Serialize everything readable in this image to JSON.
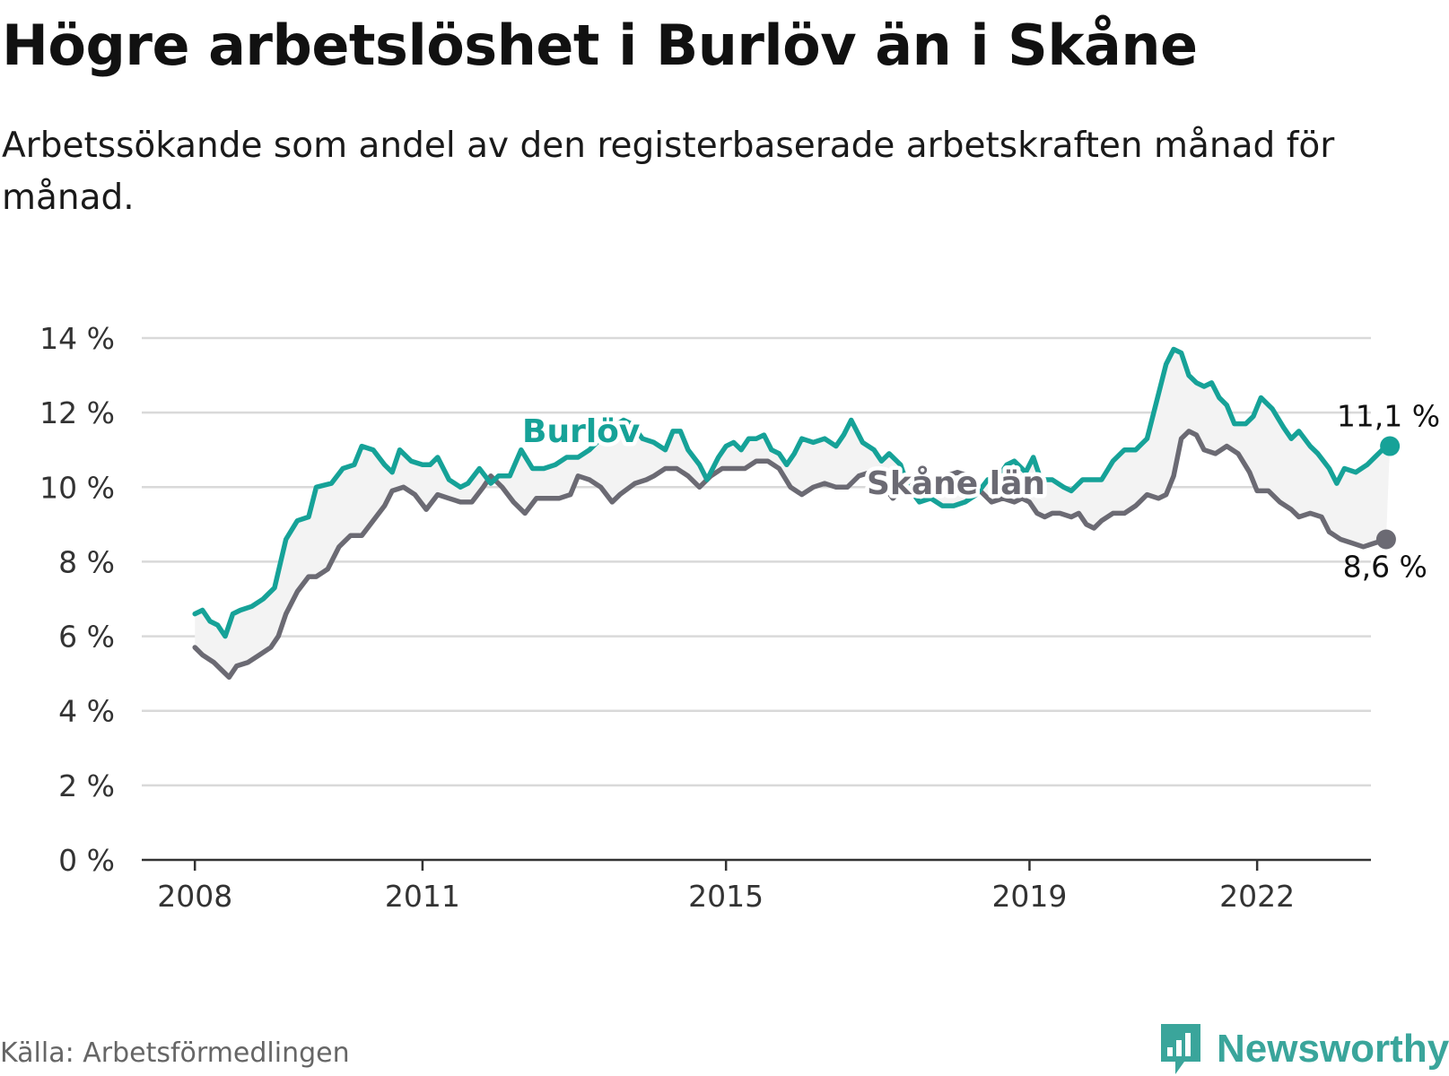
{
  "header": {
    "title": "Högre arbetslöshet i Burlöv än i Skåne",
    "subtitle": "Arbetssökande som andel av den registerbaserade arbetskraften månad för månad."
  },
  "footer": {
    "source": "Källa: Arbetsförmedlingen",
    "brand": "Newsworthy",
    "brand_icon": "newsworthy-logo-icon"
  },
  "colors": {
    "burlov": "#16a298",
    "skane": "#6b6a73",
    "grid": "#d9d9d9",
    "axis": "#333333",
    "band": "#f3f3f3"
  },
  "chart_data": {
    "type": "line",
    "title": "Högre arbetslöshet i Burlöv än i Skåne",
    "xlabel": "",
    "ylabel": "",
    "ylim": [
      0,
      14
    ],
    "xlim": [
      2007.3,
      2023.5
    ],
    "y_ticks": [
      0,
      2,
      4,
      6,
      8,
      10,
      12,
      14
    ],
    "y_tick_labels": [
      "0 %",
      "2 %",
      "4 %",
      "6 %",
      "8 %",
      "10 %",
      "12 %",
      "14 %"
    ],
    "x_ticks": [
      2008,
      2011,
      2015,
      2019,
      2022
    ],
    "x_tick_labels": [
      "2008",
      "2011",
      "2015",
      "2019",
      "2022"
    ],
    "grid": true,
    "series": [
      {
        "name": "Burlöv",
        "label": "Burlöv",
        "end_label": "11,1 %",
        "points": [
          [
            2008.0,
            6.6
          ],
          [
            2008.1,
            6.7
          ],
          [
            2008.2,
            6.4
          ],
          [
            2008.3,
            6.3
          ],
          [
            2008.4,
            6.0
          ],
          [
            2008.5,
            6.6
          ],
          [
            2008.6,
            6.7
          ],
          [
            2008.75,
            6.8
          ],
          [
            2008.9,
            7.0
          ],
          [
            2009.05,
            7.3
          ],
          [
            2009.2,
            8.6
          ],
          [
            2009.35,
            9.1
          ],
          [
            2009.5,
            9.2
          ],
          [
            2009.6,
            10.0
          ],
          [
            2009.8,
            10.1
          ],
          [
            2009.95,
            10.5
          ],
          [
            2010.1,
            10.6
          ],
          [
            2010.2,
            11.1
          ],
          [
            2010.35,
            11.0
          ],
          [
            2010.5,
            10.6
          ],
          [
            2010.6,
            10.4
          ],
          [
            2010.7,
            11.0
          ],
          [
            2010.85,
            10.7
          ],
          [
            2011.0,
            10.6
          ],
          [
            2011.1,
            10.6
          ],
          [
            2011.2,
            10.8
          ],
          [
            2011.35,
            10.2
          ],
          [
            2011.5,
            10.0
          ],
          [
            2011.6,
            10.1
          ],
          [
            2011.75,
            10.5
          ],
          [
            2011.9,
            10.1
          ],
          [
            2012.0,
            10.3
          ],
          [
            2012.15,
            10.3
          ],
          [
            2012.3,
            11.0
          ],
          [
            2012.45,
            10.5
          ],
          [
            2012.6,
            10.5
          ],
          [
            2012.75,
            10.6
          ],
          [
            2012.9,
            10.8
          ],
          [
            2013.05,
            10.8
          ],
          [
            2013.2,
            11.0
          ],
          [
            2013.35,
            11.3
          ],
          [
            2013.5,
            11.6
          ],
          [
            2013.65,
            11.8
          ],
          [
            2013.75,
            11.7
          ],
          [
            2013.9,
            11.3
          ],
          [
            2014.05,
            11.2
          ],
          [
            2014.2,
            11.0
          ],
          [
            2014.3,
            11.5
          ],
          [
            2014.4,
            11.5
          ],
          [
            2014.5,
            11.0
          ],
          [
            2014.65,
            10.6
          ],
          [
            2014.75,
            10.2
          ],
          [
            2014.9,
            10.8
          ],
          [
            2015.0,
            11.1
          ],
          [
            2015.1,
            11.2
          ],
          [
            2015.2,
            11.0
          ],
          [
            2015.3,
            11.3
          ],
          [
            2015.4,
            11.3
          ],
          [
            2015.5,
            11.4
          ],
          [
            2015.6,
            11.0
          ],
          [
            2015.7,
            10.9
          ],
          [
            2015.8,
            10.6
          ],
          [
            2015.9,
            10.9
          ],
          [
            2016.0,
            11.3
          ],
          [
            2016.15,
            11.2
          ],
          [
            2016.3,
            11.3
          ],
          [
            2016.45,
            11.1
          ],
          [
            2016.55,
            11.4
          ],
          [
            2016.65,
            11.8
          ],
          [
            2016.8,
            11.2
          ],
          [
            2016.95,
            11.0
          ],
          [
            2017.05,
            10.7
          ],
          [
            2017.15,
            10.9
          ],
          [
            2017.3,
            10.6
          ],
          [
            2017.4,
            10.0
          ],
          [
            2017.55,
            9.6
          ],
          [
            2017.7,
            9.7
          ],
          [
            2017.85,
            9.5
          ],
          [
            2018.0,
            9.5
          ],
          [
            2018.15,
            9.6
          ],
          [
            2018.3,
            9.8
          ],
          [
            2018.45,
            10.2
          ],
          [
            2018.6,
            10.3
          ],
          [
            2018.7,
            10.6
          ],
          [
            2018.8,
            10.7
          ],
          [
            2018.95,
            10.4
          ],
          [
            2019.05,
            10.8
          ],
          [
            2019.15,
            10.2
          ],
          [
            2019.3,
            10.2
          ],
          [
            2019.45,
            10.0
          ],
          [
            2019.55,
            9.9
          ],
          [
            2019.7,
            10.2
          ],
          [
            2019.85,
            10.2
          ],
          [
            2019.95,
            10.2
          ],
          [
            2020.1,
            10.7
          ],
          [
            2020.25,
            11.0
          ],
          [
            2020.4,
            11.0
          ],
          [
            2020.55,
            11.3
          ],
          [
            2020.7,
            12.5
          ],
          [
            2020.8,
            13.3
          ],
          [
            2020.9,
            13.7
          ],
          [
            2021.0,
            13.6
          ],
          [
            2021.1,
            13.0
          ],
          [
            2021.2,
            12.8
          ],
          [
            2021.3,
            12.7
          ],
          [
            2021.4,
            12.8
          ],
          [
            2021.5,
            12.4
          ],
          [
            2021.6,
            12.2
          ],
          [
            2021.7,
            11.7
          ],
          [
            2021.85,
            11.7
          ],
          [
            2021.95,
            11.9
          ],
          [
            2022.05,
            12.4
          ],
          [
            2022.2,
            12.1
          ],
          [
            2022.35,
            11.6
          ],
          [
            2022.45,
            11.3
          ],
          [
            2022.55,
            11.5
          ],
          [
            2022.7,
            11.1
          ],
          [
            2022.8,
            10.9
          ],
          [
            2022.95,
            10.5
          ],
          [
            2023.05,
            10.1
          ],
          [
            2023.15,
            10.5
          ],
          [
            2023.3,
            10.4
          ],
          [
            2023.45,
            10.6
          ],
          [
            2023.55,
            10.8
          ],
          [
            2023.65,
            11.0
          ],
          [
            2023.75,
            11.1
          ]
        ]
      },
      {
        "name": "Skåne län",
        "label": "Skåne län",
        "end_label": "8,6 %",
        "points": [
          [
            2008.0,
            5.7
          ],
          [
            2008.1,
            5.5
          ],
          [
            2008.25,
            5.3
          ],
          [
            2008.35,
            5.1
          ],
          [
            2008.45,
            4.9
          ],
          [
            2008.55,
            5.2
          ],
          [
            2008.7,
            5.3
          ],
          [
            2008.85,
            5.5
          ],
          [
            2009.0,
            5.7
          ],
          [
            2009.1,
            6.0
          ],
          [
            2009.2,
            6.6
          ],
          [
            2009.35,
            7.2
          ],
          [
            2009.5,
            7.6
          ],
          [
            2009.6,
            7.6
          ],
          [
            2009.75,
            7.8
          ],
          [
            2009.9,
            8.4
          ],
          [
            2010.05,
            8.7
          ],
          [
            2010.2,
            8.7
          ],
          [
            2010.35,
            9.1
          ],
          [
            2010.5,
            9.5
          ],
          [
            2010.6,
            9.9
          ],
          [
            2010.75,
            10.0
          ],
          [
            2010.9,
            9.8
          ],
          [
            2011.05,
            9.4
          ],
          [
            2011.2,
            9.8
          ],
          [
            2011.35,
            9.7
          ],
          [
            2011.5,
            9.6
          ],
          [
            2011.65,
            9.6
          ],
          [
            2011.8,
            10.0
          ],
          [
            2011.9,
            10.3
          ],
          [
            2012.05,
            10.0
          ],
          [
            2012.2,
            9.6
          ],
          [
            2012.35,
            9.3
          ],
          [
            2012.5,
            9.7
          ],
          [
            2012.65,
            9.7
          ],
          [
            2012.8,
            9.7
          ],
          [
            2012.95,
            9.8
          ],
          [
            2013.05,
            10.3
          ],
          [
            2013.2,
            10.2
          ],
          [
            2013.35,
            10.0
          ],
          [
            2013.5,
            9.6
          ],
          [
            2013.6,
            9.8
          ],
          [
            2013.8,
            10.1
          ],
          [
            2013.95,
            10.2
          ],
          [
            2014.05,
            10.3
          ],
          [
            2014.2,
            10.5
          ],
          [
            2014.35,
            10.5
          ],
          [
            2014.5,
            10.3
          ],
          [
            2014.65,
            10.0
          ],
          [
            2014.8,
            10.3
          ],
          [
            2014.95,
            10.5
          ],
          [
            2015.1,
            10.5
          ],
          [
            2015.25,
            10.5
          ],
          [
            2015.4,
            10.7
          ],
          [
            2015.55,
            10.7
          ],
          [
            2015.7,
            10.5
          ],
          [
            2015.85,
            10.0
          ],
          [
            2016.0,
            9.8
          ],
          [
            2016.15,
            10.0
          ],
          [
            2016.3,
            10.1
          ],
          [
            2016.45,
            10.0
          ],
          [
            2016.6,
            10.0
          ],
          [
            2016.75,
            10.3
          ],
          [
            2016.9,
            10.4
          ],
          [
            2017.05,
            10.1
          ],
          [
            2017.2,
            9.7
          ],
          [
            2017.35,
            10.0
          ],
          [
            2017.5,
            10.1
          ],
          [
            2017.6,
            10.2
          ],
          [
            2017.75,
            10.1
          ],
          [
            2017.9,
            10.3
          ],
          [
            2018.05,
            10.4
          ],
          [
            2018.2,
            10.3
          ],
          [
            2018.35,
            9.9
          ],
          [
            2018.5,
            9.6
          ],
          [
            2018.65,
            9.7
          ],
          [
            2018.8,
            9.6
          ],
          [
            2018.9,
            9.7
          ],
          [
            2019.0,
            9.6
          ],
          [
            2019.1,
            9.3
          ],
          [
            2019.2,
            9.2
          ],
          [
            2019.3,
            9.3
          ],
          [
            2019.4,
            9.3
          ],
          [
            2019.55,
            9.2
          ],
          [
            2019.65,
            9.3
          ],
          [
            2019.75,
            9.0
          ],
          [
            2019.85,
            8.9
          ],
          [
            2019.95,
            9.1
          ],
          [
            2020.1,
            9.3
          ],
          [
            2020.25,
            9.3
          ],
          [
            2020.4,
            9.5
          ],
          [
            2020.55,
            9.8
          ],
          [
            2020.7,
            9.7
          ],
          [
            2020.8,
            9.8
          ],
          [
            2020.9,
            10.3
          ],
          [
            2021.0,
            11.3
          ],
          [
            2021.1,
            11.5
          ],
          [
            2021.2,
            11.4
          ],
          [
            2021.3,
            11.0
          ],
          [
            2021.45,
            10.9
          ],
          [
            2021.6,
            11.1
          ],
          [
            2021.75,
            10.9
          ],
          [
            2021.9,
            10.4
          ],
          [
            2022.0,
            9.9
          ],
          [
            2022.15,
            9.9
          ],
          [
            2022.3,
            9.6
          ],
          [
            2022.45,
            9.4
          ],
          [
            2022.55,
            9.2
          ],
          [
            2022.7,
            9.3
          ],
          [
            2022.85,
            9.2
          ],
          [
            2022.95,
            8.8
          ],
          [
            2023.1,
            8.6
          ],
          [
            2023.25,
            8.5
          ],
          [
            2023.4,
            8.4
          ],
          [
            2023.55,
            8.5
          ],
          [
            2023.7,
            8.6
          ]
        ]
      }
    ]
  }
}
